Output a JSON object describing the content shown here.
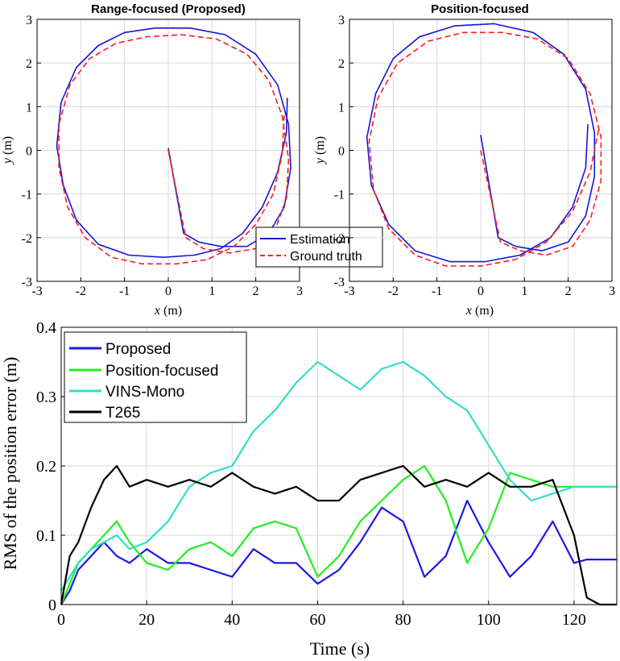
{
  "chart_data": [
    {
      "type": "line",
      "title": "Range-focused (Proposed)",
      "xlabel": "x (m)",
      "ylabel": "y (m)",
      "xlim": [
        -3,
        3
      ],
      "ylim": [
        -3,
        3
      ],
      "xticks": [
        "-3",
        "-2",
        "-1",
        "0",
        "1",
        "2",
        "3"
      ],
      "yticks": [
        "-3",
        "-2",
        "-1",
        "0",
        "1",
        "2",
        "3"
      ],
      "grid": true,
      "legend_position": "bottom-right",
      "series": [
        {
          "name": "Estimation",
          "color": "#1515d6",
          "style": "solid",
          "x": [
            0.0,
            0.35,
            0.7,
            1.2,
            1.8,
            2.3,
            2.65,
            2.8,
            2.75,
            2.5,
            2.0,
            1.3,
            0.5,
            -0.3,
            -1.0,
            -1.6,
            -2.1,
            -2.45,
            -2.55,
            -2.4,
            -2.1,
            -1.6,
            -0.9,
            -0.1,
            0.6,
            1.2,
            1.7,
            2.15,
            2.5,
            2.7,
            2.72
          ],
          "y": [
            0.05,
            -1.9,
            -2.1,
            -2.2,
            -2.2,
            -1.9,
            -1.3,
            -0.4,
            0.6,
            1.5,
            2.2,
            2.65,
            2.8,
            2.8,
            2.7,
            2.4,
            1.9,
            1.1,
            0.1,
            -0.8,
            -1.6,
            -2.15,
            -2.4,
            -2.45,
            -2.4,
            -2.25,
            -1.9,
            -1.3,
            -0.5,
            0.4,
            1.2
          ]
        },
        {
          "name": "Ground truth",
          "color": "#ff1a1a",
          "style": "dashed",
          "x": [
            0.0,
            0.4,
            0.8,
            1.4,
            2.0,
            2.45,
            2.7,
            2.75,
            2.6,
            2.3,
            1.8,
            1.1,
            0.3,
            -0.5,
            -1.2,
            -1.8,
            -2.25,
            -2.5,
            -2.5,
            -2.3,
            -1.9,
            -1.3,
            -0.6,
            0.2,
            0.9,
            1.5,
            2.0,
            2.4,
            2.6,
            2.65
          ],
          "y": [
            0.0,
            -2.0,
            -2.25,
            -2.35,
            -2.25,
            -1.8,
            -1.1,
            -0.2,
            0.8,
            1.6,
            2.2,
            2.55,
            2.65,
            2.6,
            2.45,
            2.1,
            1.5,
            0.6,
            -0.4,
            -1.3,
            -2.0,
            -2.45,
            -2.6,
            -2.6,
            -2.5,
            -2.2,
            -1.7,
            -1.0,
            -0.1,
            0.8
          ]
        }
      ],
      "legend": [
        "Estimation",
        "Ground truth"
      ]
    },
    {
      "type": "line",
      "title": "Position-focused",
      "xlabel": "x (m)",
      "ylabel": "y (m)",
      "xlim": [
        -3,
        3
      ],
      "ylim": [
        -3,
        3
      ],
      "xticks": [
        "-3",
        "-2",
        "-1",
        "0",
        "1",
        "2",
        "3"
      ],
      "yticks": [
        "-3",
        "-2",
        "-1",
        "0",
        "1",
        "2",
        "3"
      ],
      "grid": true,
      "series": [
        {
          "name": "Estimation",
          "color": "#1515d6",
          "style": "solid",
          "x": [
            0.0,
            0.4,
            0.8,
            1.4,
            2.0,
            2.4,
            2.6,
            2.6,
            2.4,
            1.9,
            1.2,
            0.3,
            -0.6,
            -1.4,
            -2.0,
            -2.4,
            -2.6,
            -2.5,
            -2.1,
            -1.5,
            -0.7,
            0.1,
            0.9,
            1.6,
            2.1,
            2.4,
            2.45
          ],
          "y": [
            0.35,
            -2.0,
            -2.2,
            -2.3,
            -2.1,
            -1.5,
            -0.6,
            0.4,
            1.4,
            2.2,
            2.7,
            2.9,
            2.85,
            2.6,
            2.1,
            1.3,
            0.3,
            -0.8,
            -1.7,
            -2.3,
            -2.55,
            -2.55,
            -2.4,
            -2.0,
            -1.3,
            -0.4,
            0.6
          ]
        },
        {
          "name": "Ground truth",
          "color": "#ff1a1a",
          "style": "dashed",
          "x": [
            0.0,
            0.45,
            0.9,
            1.5,
            2.1,
            2.5,
            2.75,
            2.75,
            2.5,
            2.0,
            1.3,
            0.5,
            -0.4,
            -1.2,
            -1.9,
            -2.35,
            -2.55,
            -2.45,
            -2.1,
            -1.5,
            -0.8,
            0.0,
            0.8,
            1.5,
            2.1,
            2.5,
            2.7
          ],
          "y": [
            0.0,
            -2.1,
            -2.3,
            -2.4,
            -2.2,
            -1.6,
            -0.7,
            0.3,
            1.3,
            2.1,
            2.55,
            2.7,
            2.7,
            2.5,
            2.0,
            1.2,
            0.2,
            -0.9,
            -1.8,
            -2.4,
            -2.65,
            -2.65,
            -2.5,
            -2.1,
            -1.4,
            -0.5,
            0.5
          ]
        }
      ]
    },
    {
      "type": "line",
      "title": "",
      "xlabel": "Time (s)",
      "ylabel": "RMS of the position error (m)",
      "xlim": [
        0,
        130
      ],
      "ylim": [
        0,
        0.4
      ],
      "xticks": [
        "0",
        "20",
        "40",
        "60",
        "80",
        "100",
        "120"
      ],
      "yticks": [
        "0",
        "0.1",
        "0.2",
        "0.3",
        "0.4"
      ],
      "grid": true,
      "legend_position": "top-left",
      "x": [
        0,
        2,
        4,
        7,
        10,
        13,
        16,
        20,
        25,
        30,
        35,
        40,
        45,
        50,
        55,
        60,
        65,
        70,
        75,
        80,
        85,
        90,
        95,
        100,
        105,
        110,
        115,
        120,
        123,
        126,
        130
      ],
      "series": [
        {
          "name": "Proposed",
          "color": "#1a1ae6",
          "values": [
            0.0,
            0.02,
            0.05,
            0.07,
            0.09,
            0.07,
            0.06,
            0.08,
            0.06,
            0.06,
            0.05,
            0.04,
            0.08,
            0.06,
            0.06,
            0.03,
            0.05,
            0.09,
            0.14,
            0.12,
            0.04,
            0.07,
            0.15,
            0.09,
            0.04,
            0.07,
            0.12,
            0.06,
            0.065,
            0.065,
            0.065
          ]
        },
        {
          "name": "Position-focused",
          "color": "#22ee22",
          "values": [
            0.0,
            0.03,
            0.06,
            0.08,
            0.1,
            0.12,
            0.09,
            0.06,
            0.05,
            0.08,
            0.09,
            0.07,
            0.11,
            0.12,
            0.11,
            0.04,
            0.07,
            0.12,
            0.15,
            0.18,
            0.2,
            0.15,
            0.06,
            0.11,
            0.19,
            0.18,
            0.17,
            0.17,
            0.17,
            0.17,
            0.17
          ]
        },
        {
          "name": "VINS-Mono",
          "color": "#33ddc8",
          "values": [
            0.02,
            0.04,
            0.06,
            0.08,
            0.09,
            0.1,
            0.08,
            0.09,
            0.12,
            0.17,
            0.19,
            0.2,
            0.25,
            0.28,
            0.32,
            0.35,
            0.33,
            0.31,
            0.34,
            0.35,
            0.33,
            0.3,
            0.28,
            0.23,
            0.18,
            0.15,
            0.16,
            0.17,
            0.17,
            0.17,
            0.17
          ]
        },
        {
          "name": "T265",
          "color": "#000000",
          "values": [
            0.0,
            0.07,
            0.09,
            0.14,
            0.18,
            0.2,
            0.17,
            0.18,
            0.17,
            0.18,
            0.17,
            0.19,
            0.17,
            0.16,
            0.17,
            0.15,
            0.15,
            0.18,
            0.19,
            0.2,
            0.17,
            0.18,
            0.17,
            0.19,
            0.17,
            0.17,
            0.18,
            0.1,
            0.01,
            0.0,
            0.0
          ]
        }
      ],
      "legend": [
        "Proposed",
        "Position-focused",
        "VINS-Mono",
        "T265"
      ]
    }
  ]
}
